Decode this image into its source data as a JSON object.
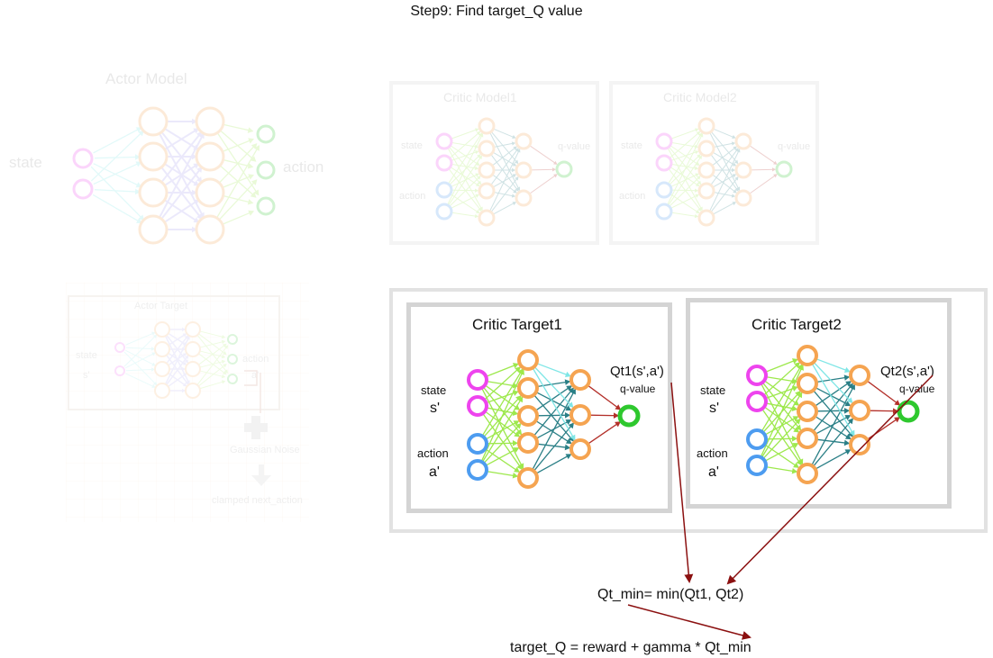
{
  "title": "Step9: Find target_Q value",
  "actor_model": {
    "title": "Actor Model",
    "input_label": "state",
    "output_label": "action"
  },
  "critic_models": [
    {
      "title": "Critic Model1",
      "state_label": "state",
      "action_label": "action",
      "output_label": "q-value"
    },
    {
      "title": "Critic Model2",
      "state_label": "state",
      "action_label": "action",
      "output_label": "q-value"
    }
  ],
  "actor_target": {
    "title": "Actor Target",
    "state_label": "state",
    "state_sub": "s'",
    "action_label": "action",
    "action_sub": "a'",
    "noise_label": "Gaussian Noise",
    "result_label": "clamped next_action"
  },
  "critic_targets": [
    {
      "title": "Critic Target1",
      "state_label": "state",
      "state_sub": "s'",
      "action_label": "action",
      "action_sub": "a'",
      "q_label": "Qt1(s',a')",
      "output_label": "q-value"
    },
    {
      "title": "Critic Target2",
      "state_label": "state",
      "state_sub": "s'",
      "action_label": "action",
      "action_sub": "a'",
      "q_label": "Qt2(s',a')",
      "output_label": "q-value"
    }
  ],
  "formulas": {
    "qt_min": "Qt_min= min(Qt1, Qt2)",
    "target_q": "target_Q = reward + gamma *  Qt_min"
  },
  "colors": {
    "state_node": "#ee44ee",
    "action_node": "#4d9cf0",
    "hidden_node": "#f5a451",
    "output_node": "#2ec82e",
    "green_edge": "#9de84c",
    "cyan_edge": "#7fe6e6",
    "teal_edge": "#2a7f86",
    "red_edge": "#b3302a",
    "purple_edge": "#a8a0f0",
    "box_border": "#d4d4d4",
    "arrow": "#8b1010"
  }
}
